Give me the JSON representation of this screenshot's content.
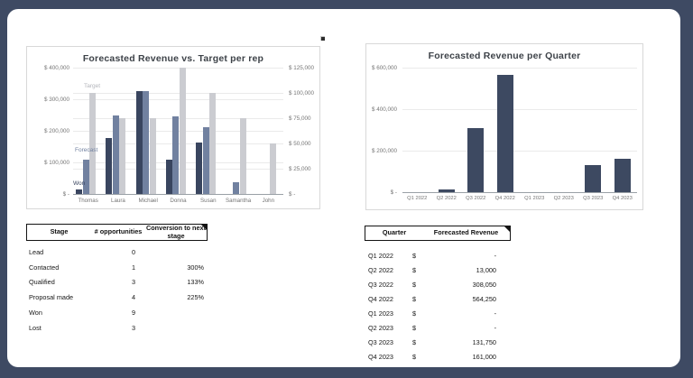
{
  "window": {
    "frame_color": "#3e4a63",
    "card_color": "#ffffff"
  },
  "chart_data": [
    {
      "type": "bar",
      "title": "Forecasted Revenue vs. Target per rep",
      "categories": [
        "Thomas",
        "Laura",
        "Michael",
        "Donna",
        "Susan",
        "Samantha",
        "John"
      ],
      "series": [
        {
          "name": "Won",
          "axis": "primary",
          "color": "#39455f",
          "values": [
            13000,
            178000,
            325000,
            110000,
            163000,
            0,
            0
          ]
        },
        {
          "name": "Forecast",
          "axis": "primary",
          "color": "#7181a0",
          "values": [
            110000,
            248000,
            325000,
            245000,
            212000,
            38000,
            0
          ]
        },
        {
          "name": "Target",
          "axis": "secondary",
          "color": "#cbccd1",
          "values": [
            100000,
            75000,
            75000,
            125000,
            100000,
            75000,
            50000
          ]
        }
      ],
      "primary_axis": {
        "min": 0,
        "max": 400000,
        "tick_labels": [
          "$ 400,000",
          "$ 300,000",
          "$ 200,000",
          "$ 100,000",
          "$ -"
        ]
      },
      "secondary_axis": {
        "min": 0,
        "max": 125000,
        "tick_labels": [
          "$ 125,000",
          "$ 100,000",
          "$ 75,000",
          "$ 50,000",
          "$ 25,000",
          "$ -"
        ]
      },
      "series_labels": [
        {
          "text": "Target",
          "color": "#b3b5bb"
        },
        {
          "text": "Forecast",
          "color": "#7181a0"
        },
        {
          "text": "Won",
          "color": "#39455f"
        }
      ],
      "legend": "none",
      "grid": true
    },
    {
      "type": "bar",
      "title": "Forecasted Revenue per Quarter",
      "categories": [
        "Q1 2022",
        "Q2 2022",
        "Q3 2022",
        "Q4 2022",
        "Q1 2023",
        "Q2 2023",
        "Q3 2023",
        "Q4 2023"
      ],
      "values": [
        0,
        13000,
        308050,
        564250,
        0,
        0,
        131750,
        161000
      ],
      "bar_color": "#3d4961",
      "ylim": [
        0,
        600000
      ],
      "y_tick_labels": [
        "$ 600,000",
        "$ 400,000",
        "$ 200,000",
        "$ -"
      ],
      "legend": "none",
      "grid": true
    }
  ],
  "stage_table": {
    "headers": [
      "Stage",
      "# opportunities",
      "Conversion to next stage"
    ],
    "rows": [
      {
        "stage": "Lead",
        "opportunities": "0",
        "conversion": ""
      },
      {
        "stage": "Contacted",
        "opportunities": "1",
        "conversion": "300%"
      },
      {
        "stage": "Qualified",
        "opportunities": "3",
        "conversion": "133%"
      },
      {
        "stage": "Proposal made",
        "opportunities": "4",
        "conversion": "225%"
      },
      {
        "stage": "Won",
        "opportunities": "9",
        "conversion": ""
      },
      {
        "stage": "Lost",
        "opportunities": "3",
        "conversion": ""
      }
    ]
  },
  "quarter_table": {
    "headers": [
      "Quarter",
      "Forecasted Revenue"
    ],
    "currency_symbol": "$",
    "rows": [
      {
        "quarter": "Q1 2022",
        "value": "-"
      },
      {
        "quarter": "Q2 2022",
        "value": "13,000"
      },
      {
        "quarter": "Q3 2022",
        "value": "308,050"
      },
      {
        "quarter": "Q4 2022",
        "value": "564,250"
      },
      {
        "quarter": "Q1 2023",
        "value": "-"
      },
      {
        "quarter": "Q2 2023",
        "value": "-"
      },
      {
        "quarter": "Q3 2023",
        "value": "131,750"
      },
      {
        "quarter": "Q4 2023",
        "value": "161,000"
      }
    ]
  }
}
